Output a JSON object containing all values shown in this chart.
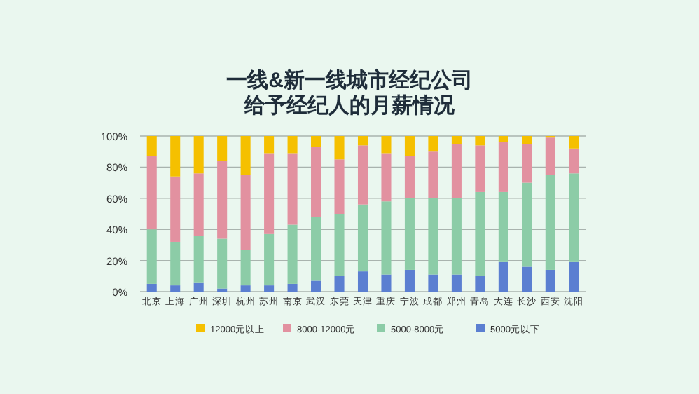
{
  "chart_data": {
    "type": "bar",
    "title": "一线&新一线城市经纪公司",
    "subtitle": "给予经纪人的月薪情况",
    "categories": [
      "北京",
      "上海",
      "广州",
      "深圳",
      "杭州",
      "苏州",
      "南京",
      "武汉",
      "东莞",
      "天津",
      "重庆",
      "宁波",
      "成都",
      "郑州",
      "青岛",
      "大连",
      "长沙",
      "西安",
      "沈阳"
    ],
    "stacked": true,
    "series": [
      {
        "name": "5000元以下",
        "color": "#5b7fd1",
        "values": [
          5,
          4,
          6,
          2,
          4,
          4,
          5,
          7,
          10,
          13,
          11,
          14,
          11,
          11,
          10,
          19,
          16,
          14,
          19
        ]
      },
      {
        "name": "5000-8000元",
        "color": "#8ccca7",
        "values": [
          35,
          28,
          30,
          32,
          23,
          33,
          38,
          41,
          40,
          43,
          47,
          46,
          49,
          49,
          54,
          45,
          54,
          61,
          57
        ]
      },
      {
        "name": "8000-12000元",
        "color": "#e291a0",
        "values": [
          47,
          42,
          40,
          50,
          48,
          52,
          46,
          45,
          35,
          38,
          31,
          27,
          30,
          35,
          30,
          32,
          25,
          24,
          16
        ]
      },
      {
        "name": "12000元以上",
        "color": "#f5c000",
        "values": [
          13,
          26,
          24,
          16,
          25,
          11,
          11,
          7,
          15,
          6,
          11,
          13,
          10,
          5,
          6,
          4,
          5,
          1,
          8
        ]
      }
    ],
    "ylim": [
      0,
      100
    ],
    "yticks": [
      {
        "value": 0,
        "label": "0%"
      },
      {
        "value": 20,
        "label": "20%"
      },
      {
        "value": 40,
        "label": "40%"
      },
      {
        "value": 60,
        "label": "60%"
      },
      {
        "value": 80,
        "label": "80%"
      },
      {
        "value": 100,
        "label": "100%"
      }
    ],
    "grid": "y",
    "legend": "bottom"
  }
}
